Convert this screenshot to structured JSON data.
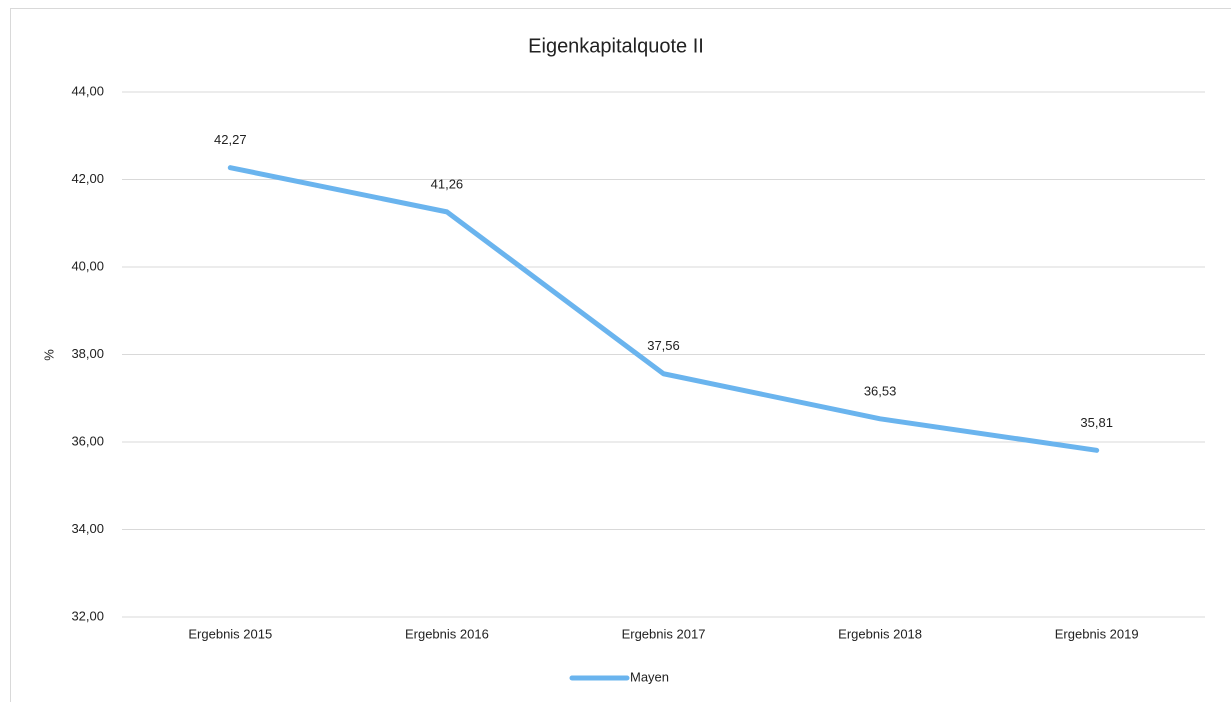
{
  "chart_data": {
    "type": "line",
    "title": "Eigenkapitalquote II",
    "y_label": "%",
    "categories": [
      "Ergebnis 2015",
      "Ergebnis 2016",
      "Ergebnis 2017",
      "Ergebnis 2018",
      "Ergebnis 2019"
    ],
    "series": [
      {
        "name": "Mayen",
        "color": "#6ab4ee",
        "values": [
          42.27,
          41.26,
          37.56,
          36.53,
          35.81
        ],
        "value_labels": [
          "42,27",
          "41,26",
          "37,56",
          "36,53",
          "35,81"
        ]
      }
    ],
    "ylim": [
      32,
      44
    ],
    "yticks": [
      {
        "value": 32,
        "label": "32,00"
      },
      {
        "value": 34,
        "label": "34,00"
      },
      {
        "value": 36,
        "label": "36,00"
      },
      {
        "value": 38,
        "label": "38,00"
      },
      {
        "value": 40,
        "label": "40,00"
      },
      {
        "value": 42,
        "label": "42,00"
      },
      {
        "value": 44,
        "label": "44,00"
      }
    ],
    "grid": true,
    "legend": "bottom"
  }
}
